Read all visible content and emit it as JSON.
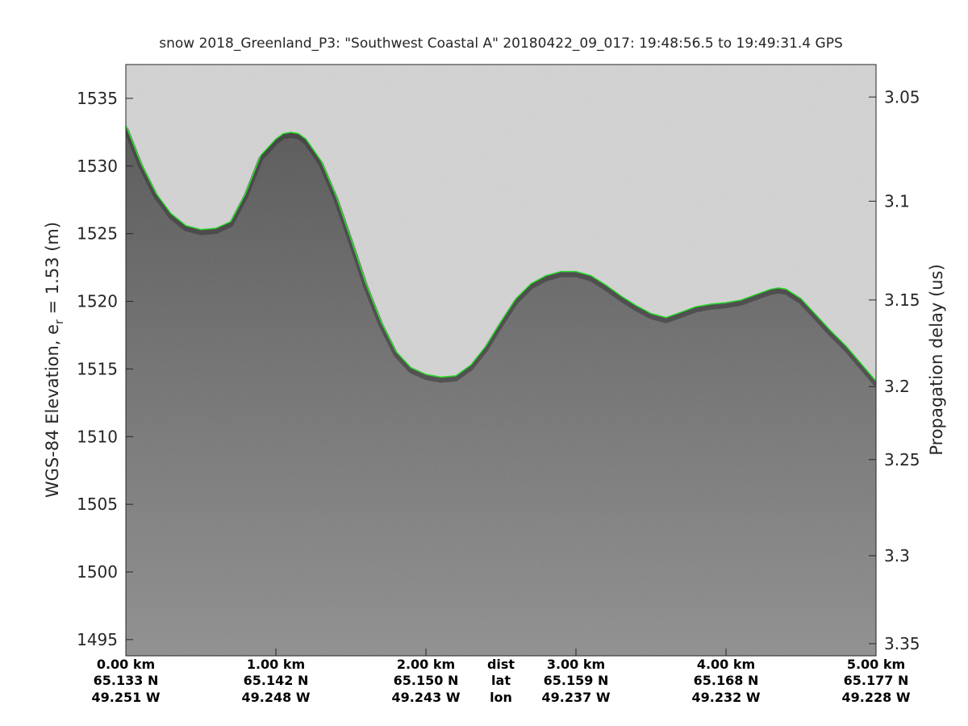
{
  "chart_data": {
    "type": "line",
    "title": "snow 2018_Greenland_P3: \"Southwest Coastal A\"  20180422_09_017: 19:48:56.5 to 19:49:31.4 GPS",
    "ylabel_left_prefix": "WGS-84 Elevation, e",
    "ylabel_left_sub": "r",
    "ylabel_left_suffix": " = 1.53 (m)",
    "ylabel_right": "Propagation delay (us)",
    "x_range_km": [
      0,
      5.0
    ],
    "ylim": [
      1493.8,
      1537.5
    ],
    "yticks": [
      1535,
      1530,
      1525,
      1520,
      1515,
      1510,
      1505,
      1500,
      1495
    ],
    "right_yticks": [
      {
        "label": "3.05",
        "elev": 1535.1
      },
      {
        "label": "3.1",
        "elev": 1527.4
      },
      {
        "label": "3.15",
        "elev": 1520.1
      },
      {
        "label": "3.2",
        "elev": 1513.7
      },
      {
        "label": "3.25",
        "elev": 1508.3
      },
      {
        "label": "3.3",
        "elev": 1501.2
      },
      {
        "label": "3.35",
        "elev": 1494.7
      }
    ],
    "x_ticks": [
      {
        "dist": "0.00 km",
        "lat": "65.133 N",
        "lon": "49.251 W",
        "km": 0.0
      },
      {
        "dist": "1.00 km",
        "lat": "65.142 N",
        "lon": "49.248 W",
        "km": 1.0
      },
      {
        "dist": "2.00 km",
        "lat": "65.150 N",
        "lon": "49.243 W",
        "km": 2.0
      },
      {
        "dist": "3.00 km",
        "lat": "65.159 N",
        "lon": "49.237 W",
        "km": 3.0
      },
      {
        "dist": "4.00 km",
        "lat": "65.168 N",
        "lon": "49.232 W",
        "km": 4.0
      },
      {
        "dist": "5.00 km",
        "lat": "65.177 N",
        "lon": "49.228 W",
        "km": 5.0
      }
    ],
    "row_labels": {
      "dist": "dist",
      "lat": "lat",
      "lon": "lon"
    },
    "series": [
      {
        "x": [
          0.0,
          0.1,
          0.2,
          0.3,
          0.4,
          0.5,
          0.6,
          0.7,
          0.8,
          0.9,
          1.0,
          1.05,
          1.1,
          1.15,
          1.2,
          1.3,
          1.4,
          1.5,
          1.6,
          1.7,
          1.8,
          1.9,
          2.0,
          2.1,
          2.2,
          2.3,
          2.4,
          2.5,
          2.6,
          2.7,
          2.8,
          2.9,
          3.0,
          3.1,
          3.2,
          3.3,
          3.4,
          3.5,
          3.6,
          3.7,
          3.8,
          3.9,
          4.0,
          4.1,
          4.2,
          4.3,
          4.35,
          4.4,
          4.5,
          4.6,
          4.7,
          4.8,
          4.9,
          5.0
        ],
        "values": [
          1533.0,
          1530.2,
          1528.0,
          1526.5,
          1525.6,
          1525.3,
          1525.4,
          1525.9,
          1528.0,
          1530.8,
          1532.0,
          1532.4,
          1532.5,
          1532.4,
          1532.0,
          1530.4,
          1527.8,
          1524.6,
          1521.3,
          1518.5,
          1516.3,
          1515.1,
          1514.6,
          1514.4,
          1514.5,
          1515.3,
          1516.7,
          1518.5,
          1520.2,
          1521.3,
          1521.9,
          1522.2,
          1522.2,
          1521.9,
          1521.2,
          1520.4,
          1519.7,
          1519.1,
          1518.8,
          1519.2,
          1519.6,
          1519.8,
          1519.9,
          1520.1,
          1520.5,
          1520.9,
          1521.0,
          1520.9,
          1520.2,
          1519.0,
          1517.8,
          1516.7,
          1515.4,
          1514.1
        ]
      }
    ],
    "colors": {
      "pick_line": "#22dd22",
      "background": "#d4d4d4",
      "echo_dark": "#5c5c5c",
      "echo_bottom": "#8c8c8c"
    }
  }
}
